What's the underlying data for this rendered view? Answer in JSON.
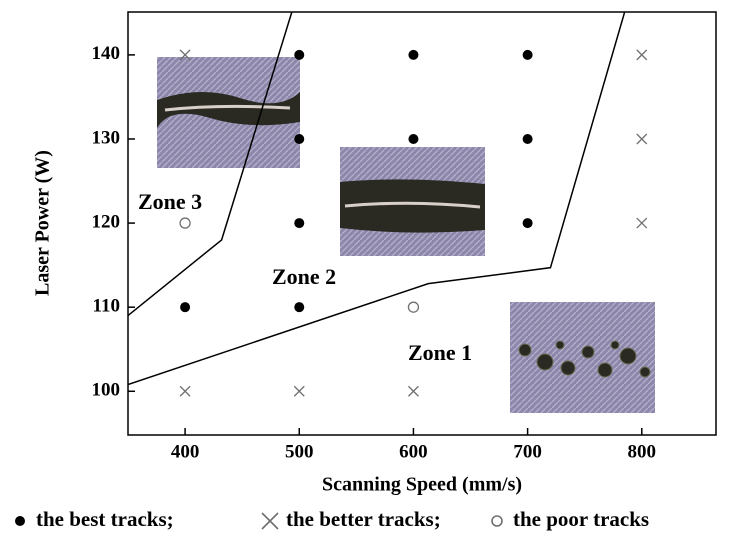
{
  "chart_data": {
    "type": "scatter",
    "x_label": "Scanning Speed (mm/s)",
    "y_label": "Laser Power (W)",
    "xlim": [
      350,
      865
    ],
    "ylim": [
      94.8,
      145.1
    ],
    "xticks": [
      400,
      500,
      600,
      700,
      800
    ],
    "yticks": [
      100,
      110,
      120,
      130,
      140
    ],
    "series": [
      {
        "name": "the best tracks;",
        "marker": "filled-circle",
        "color": "#000000",
        "x": [
          500,
          600,
          700,
          500,
          600,
          700,
          500,
          700,
          400,
          500
        ],
        "y": [
          140,
          140,
          140,
          130,
          130,
          130,
          120,
          120,
          110,
          110
        ]
      },
      {
        "name": "the better tracks;",
        "marker": "cross",
        "color": "#707070",
        "x": [
          400,
          800,
          800,
          800,
          400,
          500,
          600
        ],
        "y": [
          140,
          140,
          130,
          120,
          100,
          100,
          100
        ]
      },
      {
        "name": "the poor tracks",
        "marker": "open-circle",
        "color": "#707070",
        "x": [
          400,
          600
        ],
        "y": [
          120,
          110
        ]
      }
    ],
    "boundaries": [
      {
        "x": [
          350,
          432,
          493.5
        ],
        "y": [
          109,
          118,
          145.1
        ]
      },
      {
        "x": [
          350,
          613,
          720,
          785
        ],
        "y": [
          100.8,
          112.8,
          114.7,
          145.1
        ]
      }
    ],
    "annotations": [
      "Zone 1",
      "Zone 2",
      "Zone 3"
    ]
  }
}
